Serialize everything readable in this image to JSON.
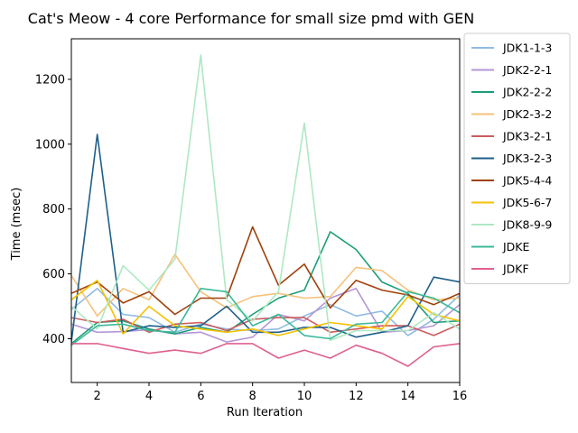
{
  "chart_data": {
    "type": "line",
    "title": "Cat's Meow - 4 core Performance for small size pmd with GEN",
    "xlabel": "Run Iteration",
    "ylabel": "Time (msec)",
    "xlim": [
      1,
      16
    ],
    "ylim": [
      265,
      1325
    ],
    "xticks": [
      2,
      4,
      6,
      8,
      10,
      12,
      14,
      16
    ],
    "yticks": [
      400,
      600,
      800,
      1000,
      1200
    ],
    "grid": false,
    "legend_position": "outside-right",
    "x": [
      1,
      2,
      3,
      4,
      5,
      6,
      7,
      8,
      9,
      10,
      11,
      12,
      13,
      14,
      15,
      16
    ],
    "series": [
      {
        "name": "JDK1-1-3",
        "color": "#8fbbe3",
        "values": [
          490,
          555,
          475,
          465,
          420,
          445,
          430,
          425,
          430,
          470,
          505,
          470,
          485,
          410,
          460,
          535
        ]
      },
      {
        "name": "JDK2-2-1",
        "color": "#b497d6",
        "values": [
          445,
          420,
          422,
          428,
          415,
          420,
          390,
          405,
          475,
          455,
          525,
          555,
          420,
          425,
          440,
          505
        ]
      },
      {
        "name": "JDK2-2-2",
        "color": "#1b9e77",
        "values": [
          385,
          450,
          455,
          430,
          415,
          435,
          420,
          475,
          525,
          550,
          730,
          675,
          575,
          540,
          450,
          455
        ]
      },
      {
        "name": "JDK2-3-2",
        "color": "#f7c17a",
        "values": [
          595,
          470,
          555,
          520,
          660,
          545,
          495,
          530,
          540,
          525,
          530,
          620,
          610,
          550,
          520,
          525
        ]
      },
      {
        "name": "JDK3-2-1",
        "color": "#cd5c5c",
        "values": [
          465,
          450,
          460,
          420,
          445,
          450,
          425,
          460,
          465,
          465,
          420,
          430,
          440,
          440,
          410,
          445
        ]
      },
      {
        "name": "JDK3-2-3",
        "color": "#1f5f8b",
        "values": [
          390,
          1030,
          420,
          440,
          435,
          440,
          500,
          420,
          420,
          435,
          435,
          405,
          420,
          440,
          590,
          575
        ]
      },
      {
        "name": "JDK5-4-4",
        "color": "#a0410c",
        "values": [
          540,
          575,
          510,
          545,
          475,
          525,
          525,
          745,
          565,
          630,
          495,
          580,
          550,
          535,
          505,
          540
        ]
      },
      {
        "name": "JDK5-6-7",
        "color": "#f5c200",
        "values": [
          520,
          580,
          415,
          500,
          440,
          430,
          420,
          430,
          410,
          430,
          450,
          440,
          430,
          530,
          475,
          455
        ]
      },
      {
        "name": "JDK8-9-9",
        "color": "#aee8c4",
        "values": [
          500,
          430,
          625,
          550,
          645,
          1275,
          520,
          455,
          545,
          1065,
          395,
          425,
          425,
          425,
          480,
          430
        ]
      },
      {
        "name": "JDKE",
        "color": "#3cb99b",
        "values": [
          380,
          440,
          445,
          425,
          420,
          555,
          545,
          440,
          475,
          410,
          400,
          445,
          450,
          545,
          525,
          480
        ]
      },
      {
        "name": "JDKF",
        "color": "#e06090",
        "values": [
          385,
          385,
          370,
          355,
          365,
          355,
          385,
          385,
          340,
          365,
          340,
          380,
          355,
          315,
          375,
          385
        ]
      }
    ]
  }
}
